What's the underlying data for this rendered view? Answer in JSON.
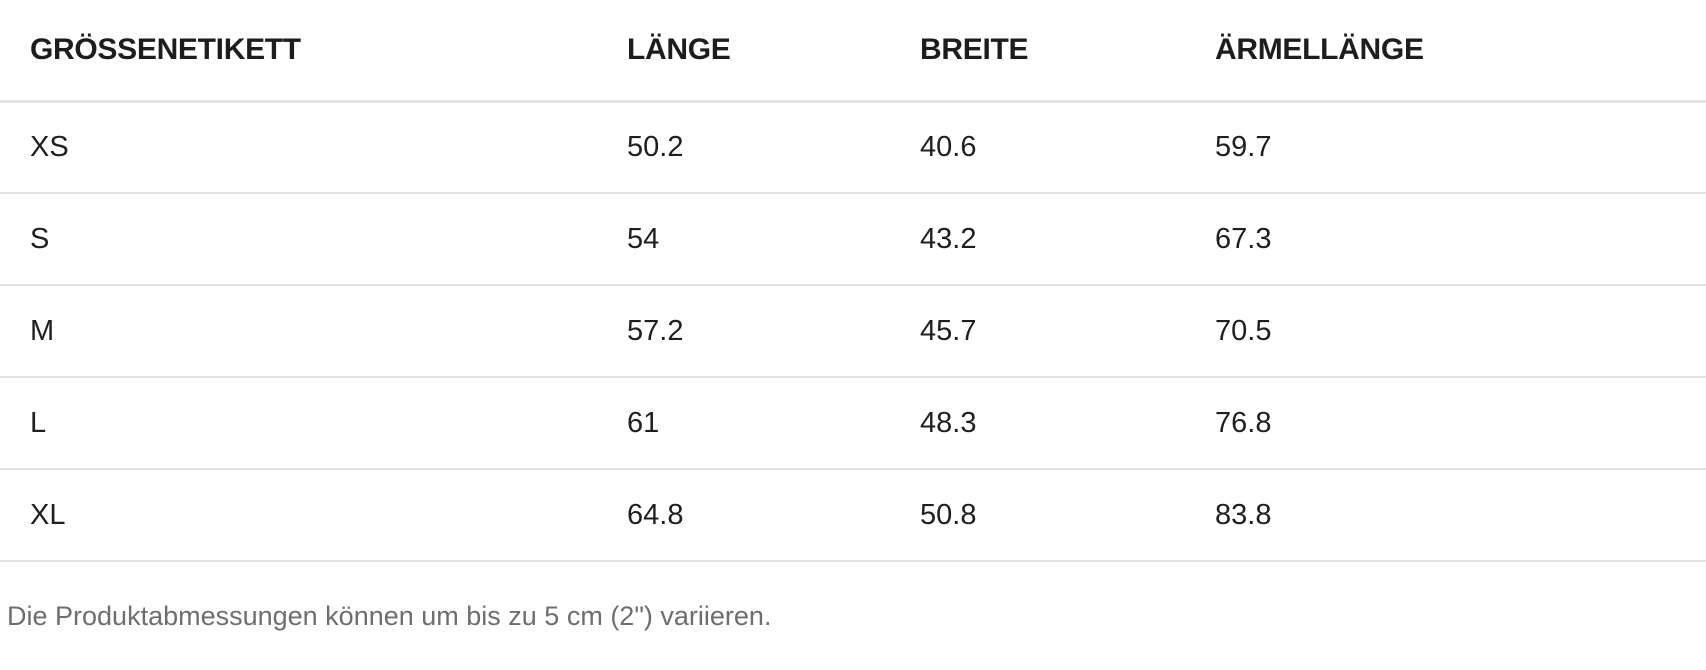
{
  "table": {
    "columns": [
      "GRÖSSENETIKETT",
      "LÄNGE",
      "BREITE",
      "ÄRMELLÄNGE"
    ],
    "rows": [
      {
        "size": "XS",
        "laenge": "50.2",
        "breite": "40.6",
        "aermellaenge": "59.7"
      },
      {
        "size": "S",
        "laenge": "54",
        "breite": "43.2",
        "aermellaenge": "67.3"
      },
      {
        "size": "M",
        "laenge": "57.2",
        "breite": "45.7",
        "aermellaenge": "70.5"
      },
      {
        "size": "L",
        "laenge": "61",
        "breite": "48.3",
        "aermellaenge": "76.8"
      },
      {
        "size": "XL",
        "laenge": "64.8",
        "breite": "50.8",
        "aermellaenge": "83.8"
      }
    ]
  },
  "footnote": "Die Produktabmessungen können um bis zu 5 cm (2\") variieren.",
  "colors": {
    "background": "#ffffff",
    "header_text": "#1d1d1d",
    "body_text": "#1f1f1f",
    "divider": "#e3e3e3",
    "footnote_text": "#6e6e6e"
  }
}
